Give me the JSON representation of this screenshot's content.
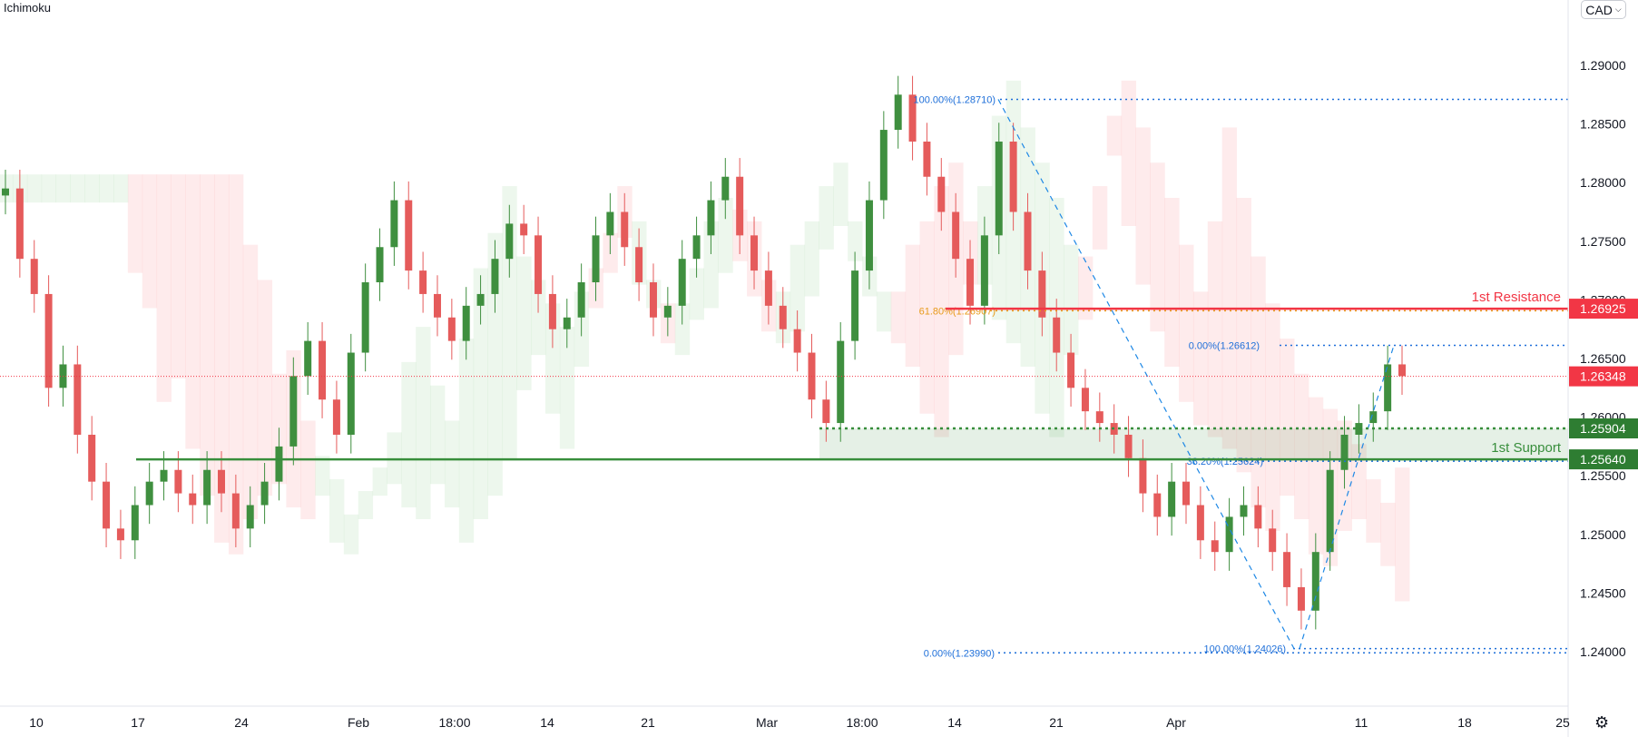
{
  "indicator": "Ichimoku",
  "currency": "CAD",
  "chart_data": {
    "type": "candlestick",
    "ylim": [
      1.2365,
      1.2935
    ],
    "y_ticks": [
      "1.29000",
      "1.28500",
      "1.28000",
      "1.27500",
      "1.27000",
      "1.26500",
      "1.26000",
      "1.25500",
      "1.25000",
      "1.24500",
      "1.24000"
    ],
    "x_ticks": [
      "10",
      "17",
      "24",
      "Feb",
      "18:00",
      "14",
      "21",
      "Mar",
      "18:00",
      "14",
      "21",
      "Apr",
      "11",
      "18",
      "25"
    ],
    "levels": {
      "resistance": {
        "label": "1st Resistance",
        "price": "1.26925",
        "value": 1.26925,
        "color": "#f23645"
      },
      "support": {
        "label": "1st Support",
        "price": "1.25640",
        "value": 1.2564,
        "color": "#388e3c"
      },
      "support_upper": {
        "price": "1.25904",
        "value": 1.25904,
        "color": "#388e3c"
      },
      "current": {
        "price": "1.26348",
        "value": 1.26348,
        "color": "#f23645"
      }
    },
    "fibonacci": [
      {
        "label": "100.00%(1.28710)",
        "value": 1.2871,
        "color": "#1e6fd9"
      },
      {
        "label": "61.80%(1.26907)",
        "value": 1.26907,
        "color": "#e89a1a"
      },
      {
        "label": "0.00%(1.26612)",
        "value": 1.26612,
        "color": "#1e6fd9"
      },
      {
        "label": "38.20%(1.25624)",
        "value": 1.25624,
        "color": "#1e6fd9"
      },
      {
        "label": "100.00%(1.24026)",
        "value": 1.24026,
        "color": "#1e6fd9"
      },
      {
        "label": "0.00%(1.23990)",
        "value": 1.2399,
        "color": "#1e6fd9"
      }
    ],
    "series": [
      {
        "values": [
          1.2795,
          1.2735,
          1.2705,
          1.2625,
          1.2645,
          1.2585,
          1.2545,
          1.2505,
          1.2495,
          1.2525,
          1.2545,
          1.2555,
          1.2535,
          1.2525,
          1.2555,
          1.2535,
          1.2505,
          1.2525,
          1.2545,
          1.2575,
          1.2635,
          1.2665,
          1.2615,
          1.2585,
          1.2655,
          1.2715,
          1.2745,
          1.2785,
          1.2725,
          1.2705,
          1.2685,
          1.2665,
          1.2695,
          1.2705,
          1.2735,
          1.2765,
          1.2755,
          1.2705,
          1.2675,
          1.2685,
          1.2715,
          1.2755,
          1.2775,
          1.2745,
          1.2715,
          1.2685,
          1.2695,
          1.2735,
          1.2755,
          1.2785,
          1.2805,
          1.2755,
          1.2725,
          1.2695,
          1.2675,
          1.2655,
          1.2615,
          1.2595,
          1.2665,
          1.2725,
          1.2785,
          1.2845,
          1.2875,
          1.2835,
          1.2805,
          1.2775,
          1.2735,
          1.2695,
          1.2755,
          1.2835,
          1.2775,
          1.2725,
          1.2685,
          1.2655,
          1.2625,
          1.2605,
          1.2595,
          1.2585,
          1.2565,
          1.2535,
          1.2515,
          1.2545,
          1.2525,
          1.2495,
          1.2485,
          1.2515,
          1.2525,
          1.2505,
          1.2485,
          1.2455,
          1.2435,
          1.2485,
          1.2555,
          1.2585,
          1.2595,
          1.2605,
          1.2645,
          1.2635
        ]
      }
    ]
  }
}
